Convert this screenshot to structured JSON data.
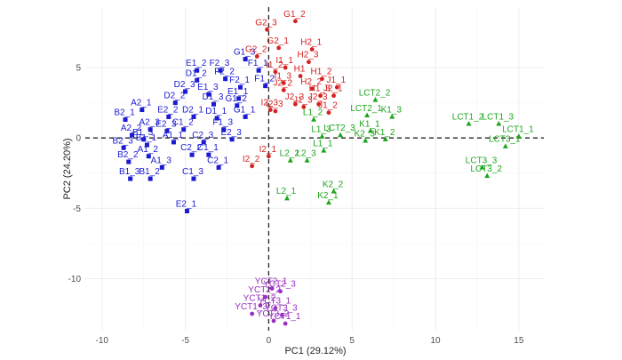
{
  "chart_data": {
    "type": "scatter",
    "xlabel": "PC1 (29.12%)",
    "ylabel": "PC2 (24.20%)",
    "xlim": [
      -11,
      16.5
    ],
    "ylim": [
      -13.7,
      9.3
    ],
    "xticks": [
      -10,
      -5,
      0,
      5,
      10,
      15
    ],
    "yticks": [
      -10,
      -5,
      0,
      5
    ],
    "grid": true,
    "reference_lines": {
      "x": 0,
      "y": 0,
      "style": "dashed"
    },
    "groups": [
      {
        "color": "#1a1ad2",
        "marker": "square",
        "points": [
          {
            "label": "G1_3",
            "x": -1.4,
            "y": 5.6
          },
          {
            "label": "E1_2",
            "x": -4.3,
            "y": 4.8
          },
          {
            "label": "F2_3",
            "x": -2.9,
            "y": 4.8
          },
          {
            "label": "F1_1",
            "x": -0.6,
            "y": 4.8
          },
          {
            "label": "D1_2",
            "x": -4.3,
            "y": 4.1
          },
          {
            "label": "F2_2",
            "x": -2.6,
            "y": 4.2
          },
          {
            "label": "F2_1",
            "x": -1.7,
            "y": 3.6
          },
          {
            "label": "F1_2",
            "x": -0.2,
            "y": 3.7
          },
          {
            "label": "D2_3",
            "x": -5.0,
            "y": 3.3
          },
          {
            "label": "E1_3",
            "x": -3.6,
            "y": 3.1
          },
          {
            "label": "E1_1",
            "x": -1.8,
            "y": 2.8
          },
          {
            "label": "A2_1",
            "x": -7.6,
            "y": 2.0
          },
          {
            "label": "D2_2",
            "x": -5.6,
            "y": 2.5
          },
          {
            "label": "D1_3",
            "x": -3.3,
            "y": 2.4
          },
          {
            "label": "G1_2",
            "x": -1.9,
            "y": 2.3
          },
          {
            "label": "B2_1",
            "x": -8.6,
            "y": 1.3
          },
          {
            "label": "E2_2",
            "x": -6.0,
            "y": 1.5
          },
          {
            "label": "D2_1",
            "x": -4.5,
            "y": 1.5
          },
          {
            "label": "D1_1",
            "x": -3.1,
            "y": 1.4
          },
          {
            "label": "G1_1",
            "x": -1.4,
            "y": 1.5
          },
          {
            "label": "A2_3",
            "x": -7.1,
            "y": 0.6
          },
          {
            "label": "E2_3",
            "x": -6.1,
            "y": 0.5
          },
          {
            "label": "C1_2",
            "x": -5.1,
            "y": 0.6
          },
          {
            "label": "F1_3",
            "x": -2.7,
            "y": 0.6
          },
          {
            "label": "A2_2",
            "x": -8.2,
            "y": 0.2
          },
          {
            "label": "B1_3",
            "x": -7.5,
            "y": -0.1
          },
          {
            "label": "A1_1",
            "x": -5.7,
            "y": -0.3
          },
          {
            "label": "C2_3",
            "x": -3.9,
            "y": -0.3
          },
          {
            "label": "E2_3",
            "x": -2.2,
            "y": -0.1
          },
          {
            "label": "B2_3",
            "x": -8.7,
            "y": -0.7
          },
          {
            "label": "B1_1",
            "x": -7.3,
            "y": -0.5
          },
          {
            "label": "B2_2",
            "x": -8.4,
            "y": -1.7
          },
          {
            "label": "A1_2",
            "x": -7.2,
            "y": -1.3
          },
          {
            "label": "C2_2",
            "x": -4.6,
            "y": -1.2
          },
          {
            "label": "C1_1",
            "x": -3.6,
            "y": -1.2
          },
          {
            "label": "C2_1",
            "x": -3.0,
            "y": -2.1
          },
          {
            "label": "A1_3",
            "x": -6.4,
            "y": -2.1
          },
          {
            "label": "B1_3",
            "x": -8.3,
            "y": -2.9
          },
          {
            "label": "B1_2",
            "x": -7.1,
            "y": -2.9
          },
          {
            "label": "C1_3",
            "x": -4.5,
            "y": -2.9
          },
          {
            "label": "E2_1",
            "x": -4.9,
            "y": -5.2
          }
        ]
      },
      {
        "color": "#d42020",
        "marker": "circle",
        "points": [
          {
            "label": "G1_2",
            "x": 1.6,
            "y": 8.3
          },
          {
            "label": "G2_3",
            "x": -0.1,
            "y": 7.7
          },
          {
            "label": "G2_1",
            "x": 0.6,
            "y": 6.4
          },
          {
            "label": "H2_1",
            "x": 2.6,
            "y": 6.3
          },
          {
            "label": "G2_2",
            "x": -0.7,
            "y": 5.8
          },
          {
            "label": "H2_3",
            "x": 2.4,
            "y": 5.4
          },
          {
            "label": "I1_1",
            "x": 1.0,
            "y": 5.0
          },
          {
            "label": "I1_2",
            "x": 0.4,
            "y": 4.7
          },
          {
            "label": "H1",
            "x": 1.9,
            "y": 4.4
          },
          {
            "label": "H1_2",
            "x": 3.2,
            "y": 4.2
          },
          {
            "label": "I1_3",
            "x": 0.9,
            "y": 3.9
          },
          {
            "label": "H2_2",
            "x": 2.6,
            "y": 3.5
          },
          {
            "label": "H1_3",
            "x": 3.1,
            "y": 3.0
          },
          {
            "label": "J1_1",
            "x": 4.1,
            "y": 3.6
          },
          {
            "label": "J2_2",
            "x": 0.9,
            "y": 3.4
          },
          {
            "label": "J2_3",
            "x": 1.6,
            "y": 2.4
          },
          {
            "label": "J2_1",
            "x": 3.9,
            "y": 3.0
          },
          {
            "label": "J2_3",
            "x": 3.0,
            "y": 2.4
          },
          {
            "label": "I2_3",
            "x": 0.4,
            "y": 1.9
          },
          {
            "label": "I2_3",
            "x": 0.1,
            "y": 2.0
          },
          {
            "label": "J1_3",
            "x": 2.1,
            "y": 2.2
          },
          {
            "label": "J1_2",
            "x": 3.6,
            "y": 1.8
          },
          {
            "label": "I2_1",
            "x": 0.0,
            "y": -1.3
          },
          {
            "label": "I2_2",
            "x": -1.0,
            "y": -2.0
          }
        ]
      },
      {
        "color": "#1ca51c",
        "marker": "triangle",
        "points": [
          {
            "label": "LCT2_2",
            "x": 6.4,
            "y": 2.7
          },
          {
            "label": "LCT2_1",
            "x": 5.9,
            "y": 1.6
          },
          {
            "label": "K1_3",
            "x": 7.4,
            "y": 1.5
          },
          {
            "label": "LCT1_2",
            "x": 12.0,
            "y": 1.0
          },
          {
            "label": "LCT1_3",
            "x": 13.8,
            "y": 1.0
          },
          {
            "label": "L1_2",
            "x": 2.7,
            "y": 1.3
          },
          {
            "label": "LCT2_3",
            "x": 4.3,
            "y": 0.2
          },
          {
            "label": "K1_1",
            "x": 6.1,
            "y": 0.5
          },
          {
            "label": "L1_3",
            "x": 3.2,
            "y": 0.1
          },
          {
            "label": "LCT1_1",
            "x": 15.0,
            "y": 0.1
          },
          {
            "label": "K2_3",
            "x": 5.8,
            "y": -0.2
          },
          {
            "label": "K1_2",
            "x": 7.0,
            "y": -0.1
          },
          {
            "label": "LCT3_1",
            "x": 14.2,
            "y": -0.6
          },
          {
            "label": "L1_1",
            "x": 3.3,
            "y": -0.9
          },
          {
            "label": "L2_2",
            "x": 1.3,
            "y": -1.6
          },
          {
            "label": "L2_3",
            "x": 2.3,
            "y": -1.6
          },
          {
            "label": "LCT3_3",
            "x": 12.8,
            "y": -2.1
          },
          {
            "label": "LCT3_2",
            "x": 13.1,
            "y": -2.7
          },
          {
            "label": "K2_2",
            "x": 3.9,
            "y": -3.8
          },
          {
            "label": "K2_1",
            "x": 3.6,
            "y": -4.6
          },
          {
            "label": "L2_1",
            "x": 1.1,
            "y": -4.3
          }
        ]
      },
      {
        "color": "#9a2fc0",
        "marker": "circle",
        "points": [
          {
            "label": "YCT2_1",
            "x": 0.2,
            "y": -10.7
          },
          {
            "label": "YCT2_2",
            "x": -0.2,
            "y": -11.3
          },
          {
            "label": "YCT2_3",
            "x": 0.7,
            "y": -10.9
          },
          {
            "label": "YCT1_2",
            "x": -0.5,
            "y": -11.9
          },
          {
            "label": "YCT3_1",
            "x": 0.4,
            "y": -12.1
          },
          {
            "label": "YCT1_3",
            "x": -1.0,
            "y": -12.5
          },
          {
            "label": "YCT3_3",
            "x": 0.8,
            "y": -12.6
          },
          {
            "label": "YCT3_2",
            "x": 0.3,
            "y": -13.0
          },
          {
            "label": "YCT1_1",
            "x": 1.0,
            "y": -13.2
          }
        ]
      }
    ]
  }
}
